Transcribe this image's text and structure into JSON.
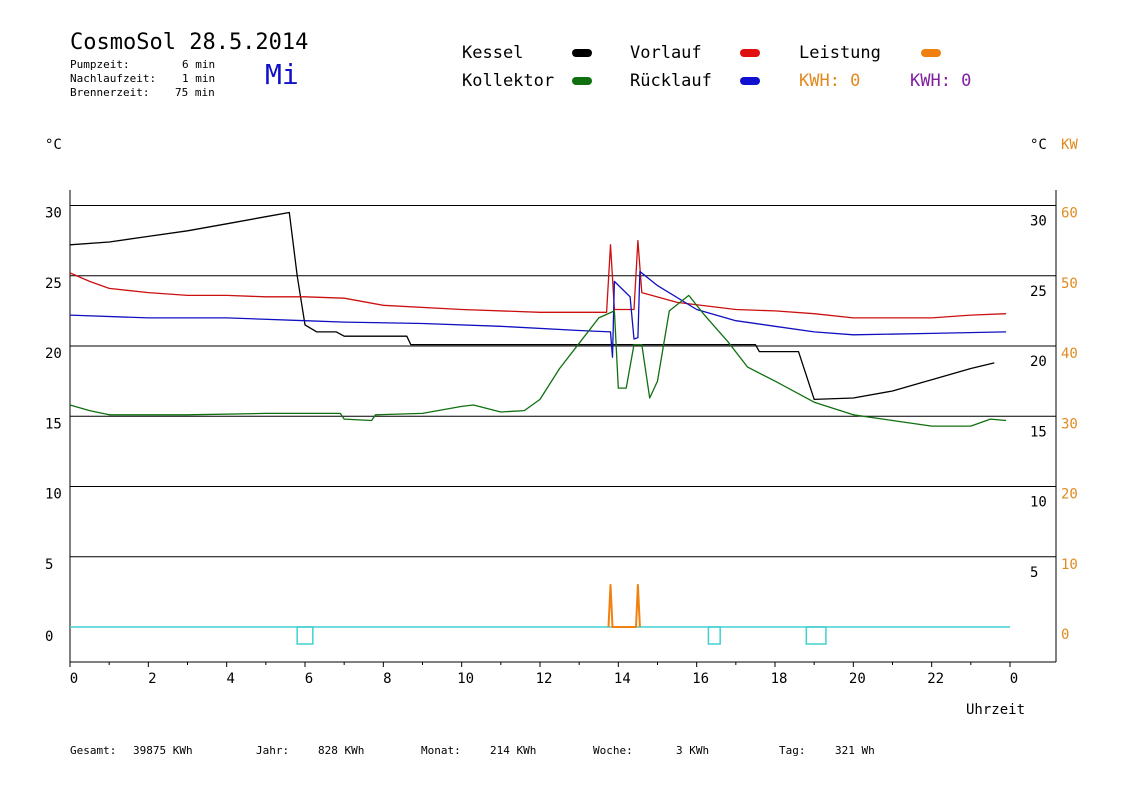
{
  "header": {
    "title": "CosmoSol 28.5.2014",
    "pumpzeit_label": "Pumpzeit:",
    "pumpzeit_value": "6 min",
    "nachlaufzeit_label": "Nachlaufzeit:",
    "nachlaufzeit_value": "1 min",
    "brennerzeit_label": "Brennerzeit:",
    "brennerzeit_value": "75 min",
    "weekday": "Mi"
  },
  "legend": {
    "kessel": "Kessel",
    "kollektor": "Kollektor",
    "vorlauf": "Vorlauf",
    "ruecklauf": "Rücklauf",
    "leistung": "Leistung",
    "kwh1": "KWH: 0",
    "kwh2": "KWH: 0"
  },
  "colors": {
    "kessel": "#000000",
    "kollektor": "#107010",
    "vorlauf": "#cc1010",
    "ruecklauf": "#1010c0",
    "leistung": "#f08010",
    "pump": "#40d0d0",
    "kwh2": "#8020a0"
  },
  "axes": {
    "left_unit": "°C",
    "right_unit_c": "°C",
    "right_unit_kw": "KW",
    "xlabel": "Uhrzeit"
  },
  "footer": {
    "gesamt_label": "Gesamt:",
    "gesamt_value": "39875 KWh",
    "jahr_label": "Jahr:",
    "jahr_value": "828 KWh",
    "monat_label": "Monat:",
    "monat_value": "214 KWh",
    "woche_label": "Woche:",
    "woche_value": "3 KWh",
    "tag_label": "Tag:",
    "tag_value": "321 Wh"
  },
  "chart_data": {
    "type": "line",
    "x_ticks": [
      "0",
      "2",
      "4",
      "6",
      "8",
      "10",
      "12",
      "14",
      "16",
      "18",
      "20",
      "22",
      "0"
    ],
    "y_left_ticks": [
      "30",
      "25",
      "20",
      "15",
      "10",
      "5",
      "0"
    ],
    "y_right_c_ticks": [
      "30",
      "25",
      "20",
      "15",
      "10",
      "5"
    ],
    "y_right_kw_ticks": [
      "60",
      "50",
      "40",
      "30",
      "20",
      "10",
      "0"
    ],
    "ylim": [
      0,
      30
    ],
    "xlim": [
      0,
      24
    ],
    "grid": true,
    "series": [
      {
        "name": "Kessel",
        "color_key": "kessel",
        "points": [
          [
            0,
            27.2
          ],
          [
            1,
            27.4
          ],
          [
            2,
            27.8
          ],
          [
            3,
            28.2
          ],
          [
            4,
            28.7
          ],
          [
            5,
            29.2
          ],
          [
            5.6,
            29.5
          ],
          [
            5.8,
            25
          ],
          [
            6.0,
            21.5
          ],
          [
            6.3,
            21.0
          ],
          [
            6.8,
            21.0
          ],
          [
            7,
            20.7
          ],
          [
            8.6,
            20.7
          ],
          [
            8.7,
            20.1
          ],
          [
            12,
            20.1
          ],
          [
            13.9,
            20.1
          ],
          [
            14.2,
            20.1
          ],
          [
            17.5,
            20.1
          ],
          [
            17.6,
            19.6
          ],
          [
            18.6,
            19.6
          ],
          [
            19.0,
            16.2
          ],
          [
            20,
            16.3
          ],
          [
            21,
            16.8
          ],
          [
            22,
            17.6
          ],
          [
            23,
            18.4
          ],
          [
            23.6,
            18.8
          ]
        ]
      },
      {
        "name": "Vorlauf",
        "color_key": "vorlauf",
        "points": [
          [
            0,
            25.2
          ],
          [
            0.5,
            24.6
          ],
          [
            1,
            24.1
          ],
          [
            2,
            23.8
          ],
          [
            3,
            23.6
          ],
          [
            4,
            23.6
          ],
          [
            5,
            23.5
          ],
          [
            6,
            23.5
          ],
          [
            7,
            23.4
          ],
          [
            8,
            22.9
          ],
          [
            10,
            22.6
          ],
          [
            12,
            22.4
          ],
          [
            13.0,
            22.4
          ],
          [
            13.7,
            22.4
          ],
          [
            13.8,
            27.2
          ],
          [
            13.9,
            22.6
          ],
          [
            14.4,
            22.6
          ],
          [
            14.5,
            27.5
          ],
          [
            14.6,
            23.8
          ],
          [
            15.5,
            23.1
          ],
          [
            17,
            22.6
          ],
          [
            18,
            22.5
          ],
          [
            19,
            22.3
          ],
          [
            20,
            22.0
          ],
          [
            22,
            22.0
          ],
          [
            23,
            22.2
          ],
          [
            23.9,
            22.3
          ]
        ]
      },
      {
        "name": "Rücklauf",
        "color_key": "ruecklauf",
        "points": [
          [
            0,
            22.2
          ],
          [
            2,
            22.0
          ],
          [
            4,
            22.0
          ],
          [
            6,
            21.8
          ],
          [
            7,
            21.7
          ],
          [
            9,
            21.6
          ],
          [
            11,
            21.4
          ],
          [
            13,
            21.1
          ],
          [
            13.8,
            21.0
          ],
          [
            13.85,
            19.2
          ],
          [
            13.9,
            24.6
          ],
          [
            14.3,
            23.5
          ],
          [
            14.4,
            20.5
          ],
          [
            14.5,
            20.6
          ],
          [
            14.55,
            25.3
          ],
          [
            15,
            24.3
          ],
          [
            16,
            22.6
          ],
          [
            17,
            21.8
          ],
          [
            18,
            21.4
          ],
          [
            19,
            21.0
          ],
          [
            20,
            20.8
          ],
          [
            22,
            20.9
          ],
          [
            23.9,
            21.0
          ]
        ]
      },
      {
        "name": "Kollektor",
        "color_key": "kollektor",
        "points": [
          [
            0,
            15.8
          ],
          [
            0.5,
            15.4
          ],
          [
            1,
            15.1
          ],
          [
            3,
            15.1
          ],
          [
            5,
            15.2
          ],
          [
            6,
            15.2
          ],
          [
            6.9,
            15.2
          ],
          [
            7,
            14.8
          ],
          [
            7.7,
            14.7
          ],
          [
            7.8,
            15.1
          ],
          [
            9,
            15.2
          ],
          [
            10,
            15.7
          ],
          [
            10.3,
            15.8
          ],
          [
            11,
            15.3
          ],
          [
            11.6,
            15.4
          ],
          [
            12,
            16.2
          ],
          [
            12.5,
            18.4
          ],
          [
            13,
            20.2
          ],
          [
            13.5,
            22
          ],
          [
            13.9,
            22.5
          ],
          [
            14.0,
            17
          ],
          [
            14.2,
            17
          ],
          [
            14.4,
            20.1
          ],
          [
            14.6,
            20.1
          ],
          [
            14.8,
            16.3
          ],
          [
            15,
            17.5
          ],
          [
            15.3,
            22.5
          ],
          [
            15.8,
            23.6
          ],
          [
            16.2,
            22.2
          ],
          [
            16.8,
            20.3
          ],
          [
            17.3,
            18.5
          ],
          [
            18,
            17.5
          ],
          [
            19,
            16.0
          ],
          [
            20,
            15.1
          ],
          [
            21,
            14.7
          ],
          [
            22,
            14.3
          ],
          [
            23,
            14.3
          ],
          [
            23.5,
            14.8
          ],
          [
            23.9,
            14.7
          ]
        ]
      },
      {
        "name": "Leistung",
        "color_key": "leistung",
        "points": [
          [
            13.75,
            0
          ],
          [
            13.8,
            3
          ],
          [
            13.85,
            0
          ],
          [
            14.45,
            0
          ],
          [
            14.5,
            3
          ],
          [
            14.55,
            0
          ]
        ]
      }
    ],
    "pump_on_intervals": [
      [
        5.8,
        6.2
      ],
      [
        16.3,
        16.6
      ],
      [
        18.8,
        19.3
      ]
    ]
  }
}
